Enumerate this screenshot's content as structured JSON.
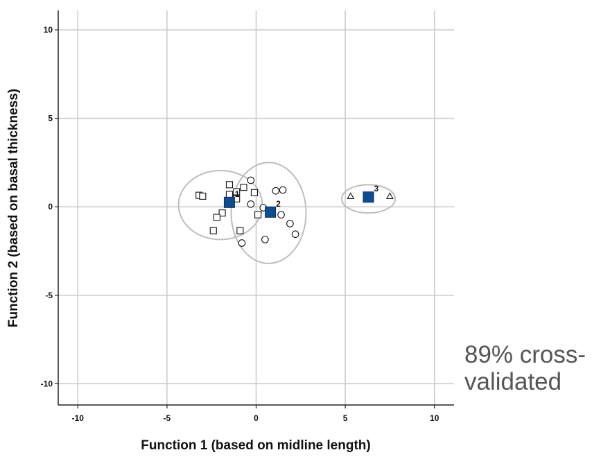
{
  "chart_data": {
    "type": "scatter",
    "xlabel": "Function 1 (based on midline length)",
    "ylabel": "Function 2 (based on basal thickness)",
    "xlim": [
      -11.1,
      11.1
    ],
    "ylim": [
      -11.2,
      11.1
    ],
    "xticks": [
      -10,
      -5,
      0,
      5,
      10
    ],
    "yticks": [
      -10,
      -5,
      0,
      5,
      10
    ],
    "x_tick_labels": [
      "-10",
      "-5",
      "0",
      "5",
      "10"
    ],
    "y_tick_labels": [
      "-10",
      "-5",
      "0",
      "5",
      "10"
    ],
    "grid": true,
    "series": [
      {
        "marker": "square",
        "points": [
          [
            -3.2,
            0.65
          ],
          [
            -3.0,
            0.6
          ],
          [
            -1.5,
            1.25
          ],
          [
            -1.1,
            0.85
          ],
          [
            -0.7,
            1.1
          ],
          [
            -0.1,
            0.8
          ],
          [
            -1.5,
            0.7
          ],
          [
            -1.1,
            0.45
          ],
          [
            -1.9,
            -0.35
          ],
          [
            -2.2,
            -0.6
          ],
          [
            -2.4,
            -1.35
          ],
          [
            -0.9,
            -1.35
          ],
          [
            0.1,
            -0.45
          ]
        ]
      },
      {
        "marker": "circle",
        "points": [
          [
            -0.3,
            1.5
          ],
          [
            -0.3,
            0.15
          ],
          [
            1.1,
            0.9
          ],
          [
            1.5,
            0.95
          ],
          [
            0.4,
            -0.05
          ],
          [
            1.4,
            -0.45
          ],
          [
            1.9,
            -0.95
          ],
          [
            2.2,
            -1.55
          ],
          [
            0.5,
            -1.85
          ],
          [
            -0.8,
            -2.05
          ]
        ]
      },
      {
        "marker": "triangle",
        "points": [
          [
            5.3,
            0.6
          ],
          [
            7.5,
            0.6
          ]
        ]
      }
    ],
    "centroids": [
      {
        "label": "1",
        "x": -1.5,
        "y": 0.25
      },
      {
        "label": "2",
        "x": 0.8,
        "y": -0.3
      },
      {
        "label": "3",
        "x": 6.3,
        "y": 0.55
      }
    ],
    "ellipses": [
      {
        "cx": -2.0,
        "cy": 0.1,
        "rx": 2.35,
        "ry": 1.95
      },
      {
        "cx": 0.7,
        "cy": -0.35,
        "rx": 2.1,
        "ry": 2.85
      },
      {
        "cx": 6.3,
        "cy": 0.45,
        "rx": 1.5,
        "ry": 0.8
      }
    ],
    "colors": {
      "centroid": "#0e4c93",
      "grid": "#c8c8c8",
      "ellipse": "#bdbdbd"
    }
  },
  "annotation": "89% cross-validated"
}
